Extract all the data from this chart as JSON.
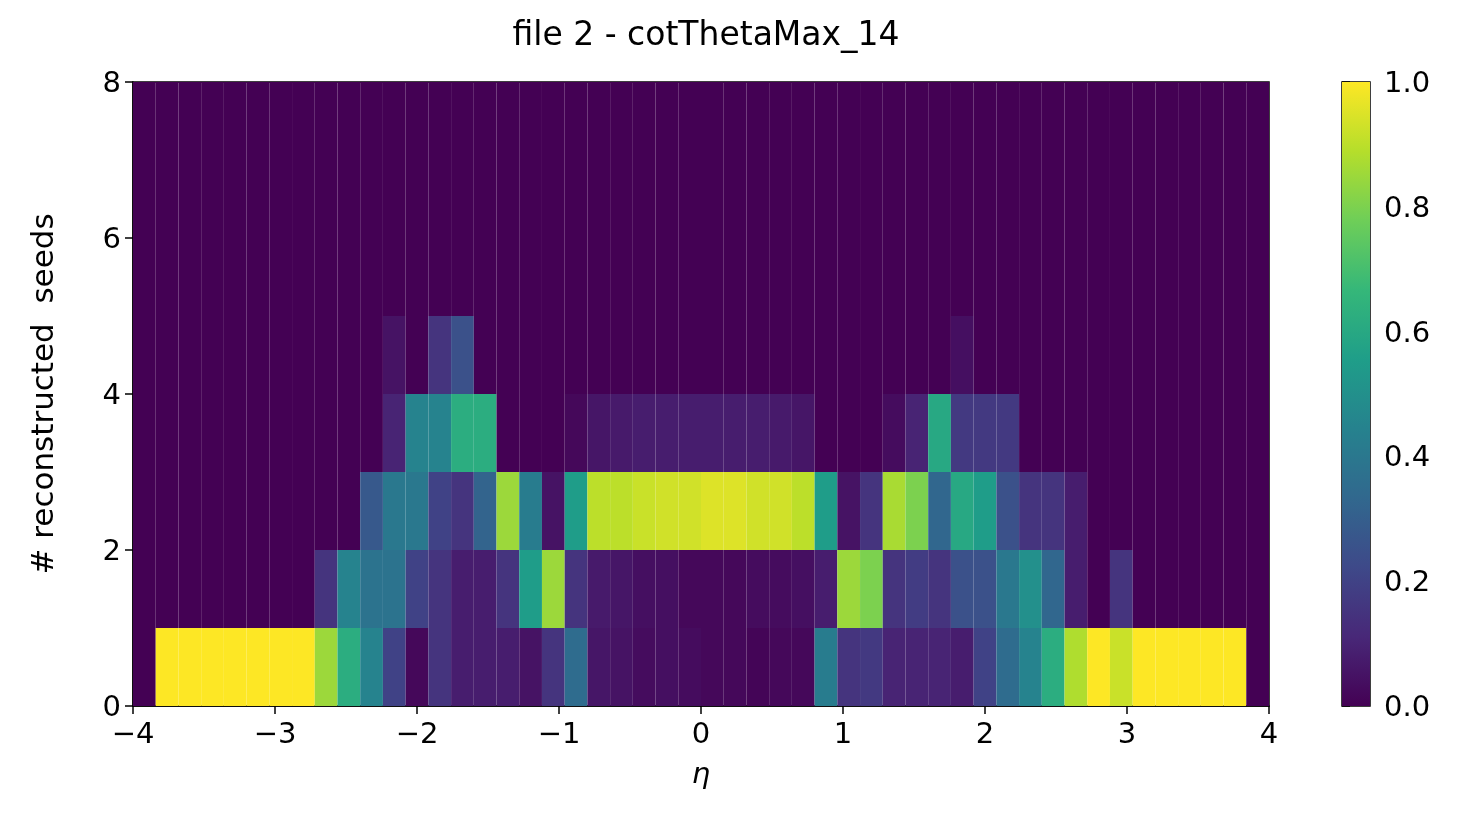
{
  "chart_data": {
    "type": "heatmap",
    "title": "file 2 - cotThetaMax_14",
    "xlabel": "η",
    "ylabel": "# reconstructed  seeds",
    "x": [
      -3.92,
      -3.76,
      -3.6,
      -3.44,
      -3.28,
      -3.12,
      -2.96,
      -2.8,
      -2.64,
      -2.48,
      -2.32,
      -2.16,
      -2,
      -1.84,
      -1.68,
      -1.52,
      -1.36,
      -1.2,
      -1.04,
      -0.88,
      -0.72,
      -0.56,
      -0.4,
      -0.24,
      -0.08,
      0.08,
      0.24,
      0.4,
      0.56,
      0.72,
      0.88,
      1.04,
      1.2,
      1.36,
      1.52,
      1.68,
      1.84,
      2,
      2.16,
      2.32,
      2.48,
      2.64,
      2.8,
      2.96,
      3.12,
      3.28,
      3.44,
      3.6,
      3.76,
      3.92
    ],
    "cells": [
      [
        0,
        0,
        0,
        0,
        0,
        0,
        0,
        0,
        0,
        0,
        0,
        0,
        0,
        0,
        0,
        0,
        0,
        0,
        0,
        0,
        0,
        0,
        0,
        0,
        0,
        0,
        0,
        0,
        0,
        0,
        0,
        0,
        0,
        0,
        0,
        0,
        0,
        0,
        0,
        0,
        0,
        0,
        0,
        0,
        0,
        0,
        0,
        0,
        0,
        0
      ],
      [
        0,
        0,
        0,
        0,
        0,
        0,
        0,
        0,
        0,
        0,
        0,
        0,
        0,
        0,
        0,
        0,
        0,
        0,
        0,
        0,
        0,
        0,
        0,
        0,
        0,
        0,
        0,
        0,
        0,
        0,
        0,
        0,
        0,
        0,
        0,
        0,
        0,
        0,
        0,
        0,
        0,
        0,
        0,
        0,
        0,
        0,
        0,
        0,
        0,
        0
      ],
      [
        0,
        0,
        0,
        0,
        0,
        0,
        0,
        0,
        0,
        0,
        0,
        0,
        0,
        0,
        0,
        0,
        0,
        0,
        0,
        0,
        0,
        0,
        0,
        0,
        0,
        0,
        0,
        0,
        0,
        0,
        0,
        0,
        0,
        0,
        0,
        0,
        0,
        0,
        0,
        0,
        0,
        0,
        0,
        0,
        0,
        0,
        0,
        0,
        0,
        0
      ],
      [
        0,
        0,
        0,
        0,
        0,
        0,
        0,
        0,
        0,
        0,
        0,
        0.05,
        0,
        0.15,
        0.25,
        0,
        0,
        0,
        0,
        0,
        0,
        0,
        0,
        0,
        0,
        0,
        0,
        0,
        0,
        0,
        0,
        0,
        0,
        0,
        0,
        0,
        0.04,
        0,
        0,
        0,
        0,
        0,
        0,
        0,
        0,
        0,
        0,
        0,
        0,
        0
      ],
      [
        0,
        0,
        0,
        0,
        0,
        0,
        0,
        0,
        0,
        0,
        0,
        0.1,
        0.45,
        0.45,
        0.62,
        0.62,
        0,
        0,
        0,
        0.02,
        0.06,
        0.07,
        0.08,
        0.08,
        0.08,
        0.08,
        0.08,
        0.08,
        0.07,
        0.06,
        0,
        0,
        0,
        0.03,
        0.1,
        0.6,
        0.17,
        0.17,
        0.17,
        0,
        0,
        0,
        0,
        0,
        0,
        0,
        0,
        0,
        0,
        0
      ],
      [
        0,
        0,
        0,
        0,
        0,
        0,
        0,
        0,
        0,
        0,
        0.28,
        0.4,
        0.4,
        0.2,
        0.15,
        0.32,
        0.85,
        0.42,
        0.05,
        0.55,
        0.9,
        0.9,
        0.92,
        0.93,
        0.93,
        0.95,
        0.95,
        0.93,
        0.93,
        0.9,
        0.55,
        0.05,
        0.15,
        0.87,
        0.8,
        0.33,
        0.6,
        0.55,
        0.25,
        0.15,
        0.15,
        0.08,
        0,
        0,
        0,
        0,
        0,
        0,
        0,
        0
      ],
      [
        0,
        0,
        0,
        0,
        0,
        0,
        0,
        0,
        0.15,
        0.45,
        0.38,
        0.38,
        0.2,
        0.15,
        0.08,
        0.08,
        0.15,
        0.55,
        0.85,
        0.15,
        0.07,
        0.06,
        0.04,
        0.04,
        0.02,
        0.02,
        0.02,
        0.03,
        0.03,
        0.04,
        0.08,
        0.85,
        0.8,
        0.15,
        0.18,
        0.15,
        0.25,
        0.25,
        0.4,
        0.5,
        0.33,
        0.08,
        0,
        0.15,
        0,
        0,
        0,
        0,
        0,
        0
      ],
      [
        0,
        1,
        1,
        1,
        1,
        1,
        1,
        1,
        0.85,
        0.62,
        0.45,
        0.2,
        0.02,
        0.15,
        0.08,
        0.08,
        0.08,
        0.05,
        0.15,
        0.35,
        0.06,
        0.05,
        0.03,
        0.04,
        0.03,
        0.02,
        0.02,
        0.01,
        0.02,
        0.02,
        0.42,
        0.15,
        0.17,
        0.1,
        0.1,
        0.1,
        0.08,
        0.2,
        0.35,
        0.45,
        0.62,
        0.88,
        1,
        0.92,
        1,
        1,
        1,
        1,
        1,
        0
      ]
    ],
    "xlim": [
      -4,
      4
    ],
    "xticks": [
      {
        "value": -4,
        "label": "−4"
      },
      {
        "value": -3,
        "label": "−3"
      },
      {
        "value": -2,
        "label": "−2"
      },
      {
        "value": -1,
        "label": "−1"
      },
      0,
      1,
      2,
      3,
      4
    ],
    "ylim": [
      0,
      8
    ],
    "yticks": [
      0,
      2,
      4,
      6,
      8
    ],
    "clim": [
      0,
      1
    ],
    "cticks": [
      {
        "value": 0,
        "label": "0.0"
      },
      {
        "value": 0.2,
        "label": "0.2"
      },
      {
        "value": 0.4,
        "label": "0.4"
      },
      {
        "value": 0.6,
        "label": "0.6"
      },
      {
        "value": 0.8,
        "label": "0.8"
      },
      {
        "value": 1,
        "label": "1.0"
      }
    ]
  }
}
